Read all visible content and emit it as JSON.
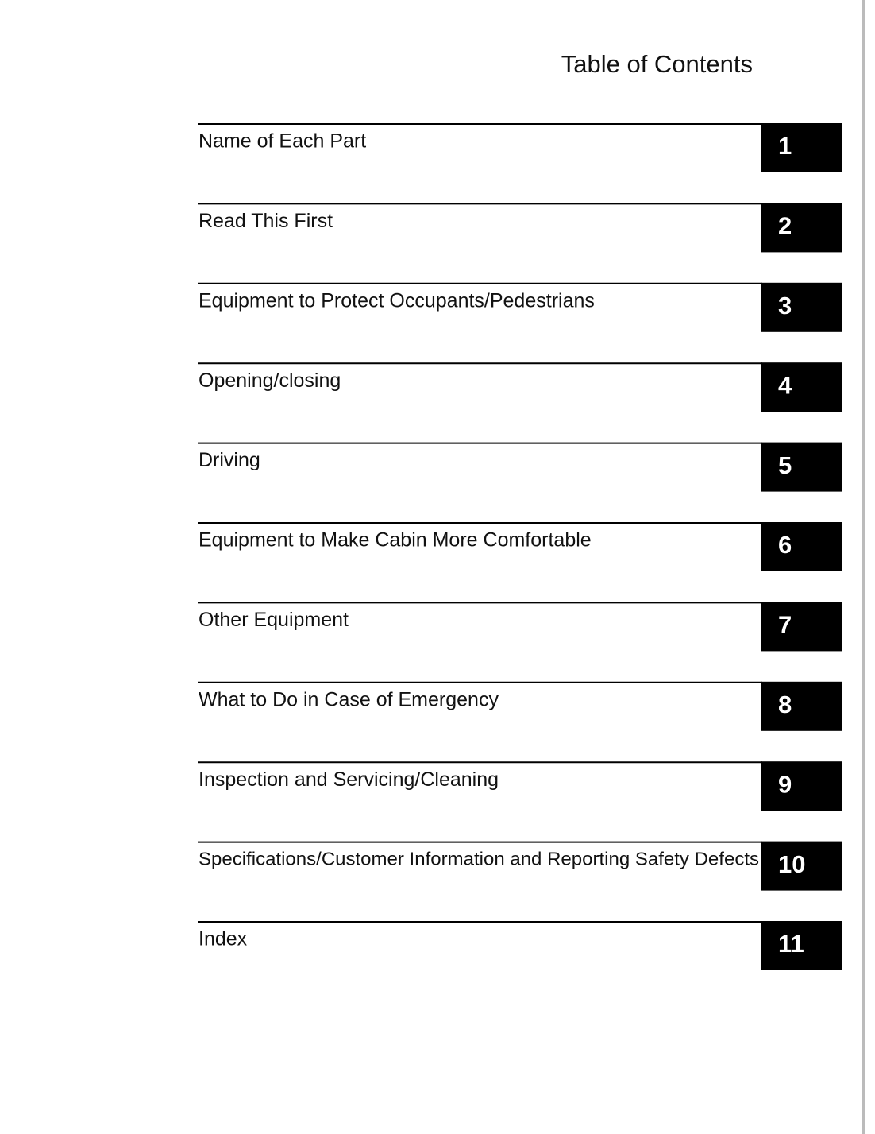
{
  "title": "Table of Contents",
  "entries": [
    {
      "label": "Name of Each Part",
      "number": 1
    },
    {
      "label": "Read This First",
      "number": 2
    },
    {
      "label": "Equipment to Protect Occupants/Pedestrians",
      "number": 3
    },
    {
      "label": "Opening/closing",
      "number": 4
    },
    {
      "label": "Driving",
      "number": 5
    },
    {
      "label": "Equipment to Make Cabin More Comfortable",
      "number": 6
    },
    {
      "label": "Other Equipment",
      "number": 7
    },
    {
      "label": "What to Do in Case of Emergency",
      "number": 8
    },
    {
      "label": "Inspection and Servicing/Cleaning",
      "number": 9
    },
    {
      "label": "Specifications/Customer Information and Reporting Safety Defects",
      "number": 10
    },
    {
      "label": "Index",
      "number": 11
    }
  ]
}
